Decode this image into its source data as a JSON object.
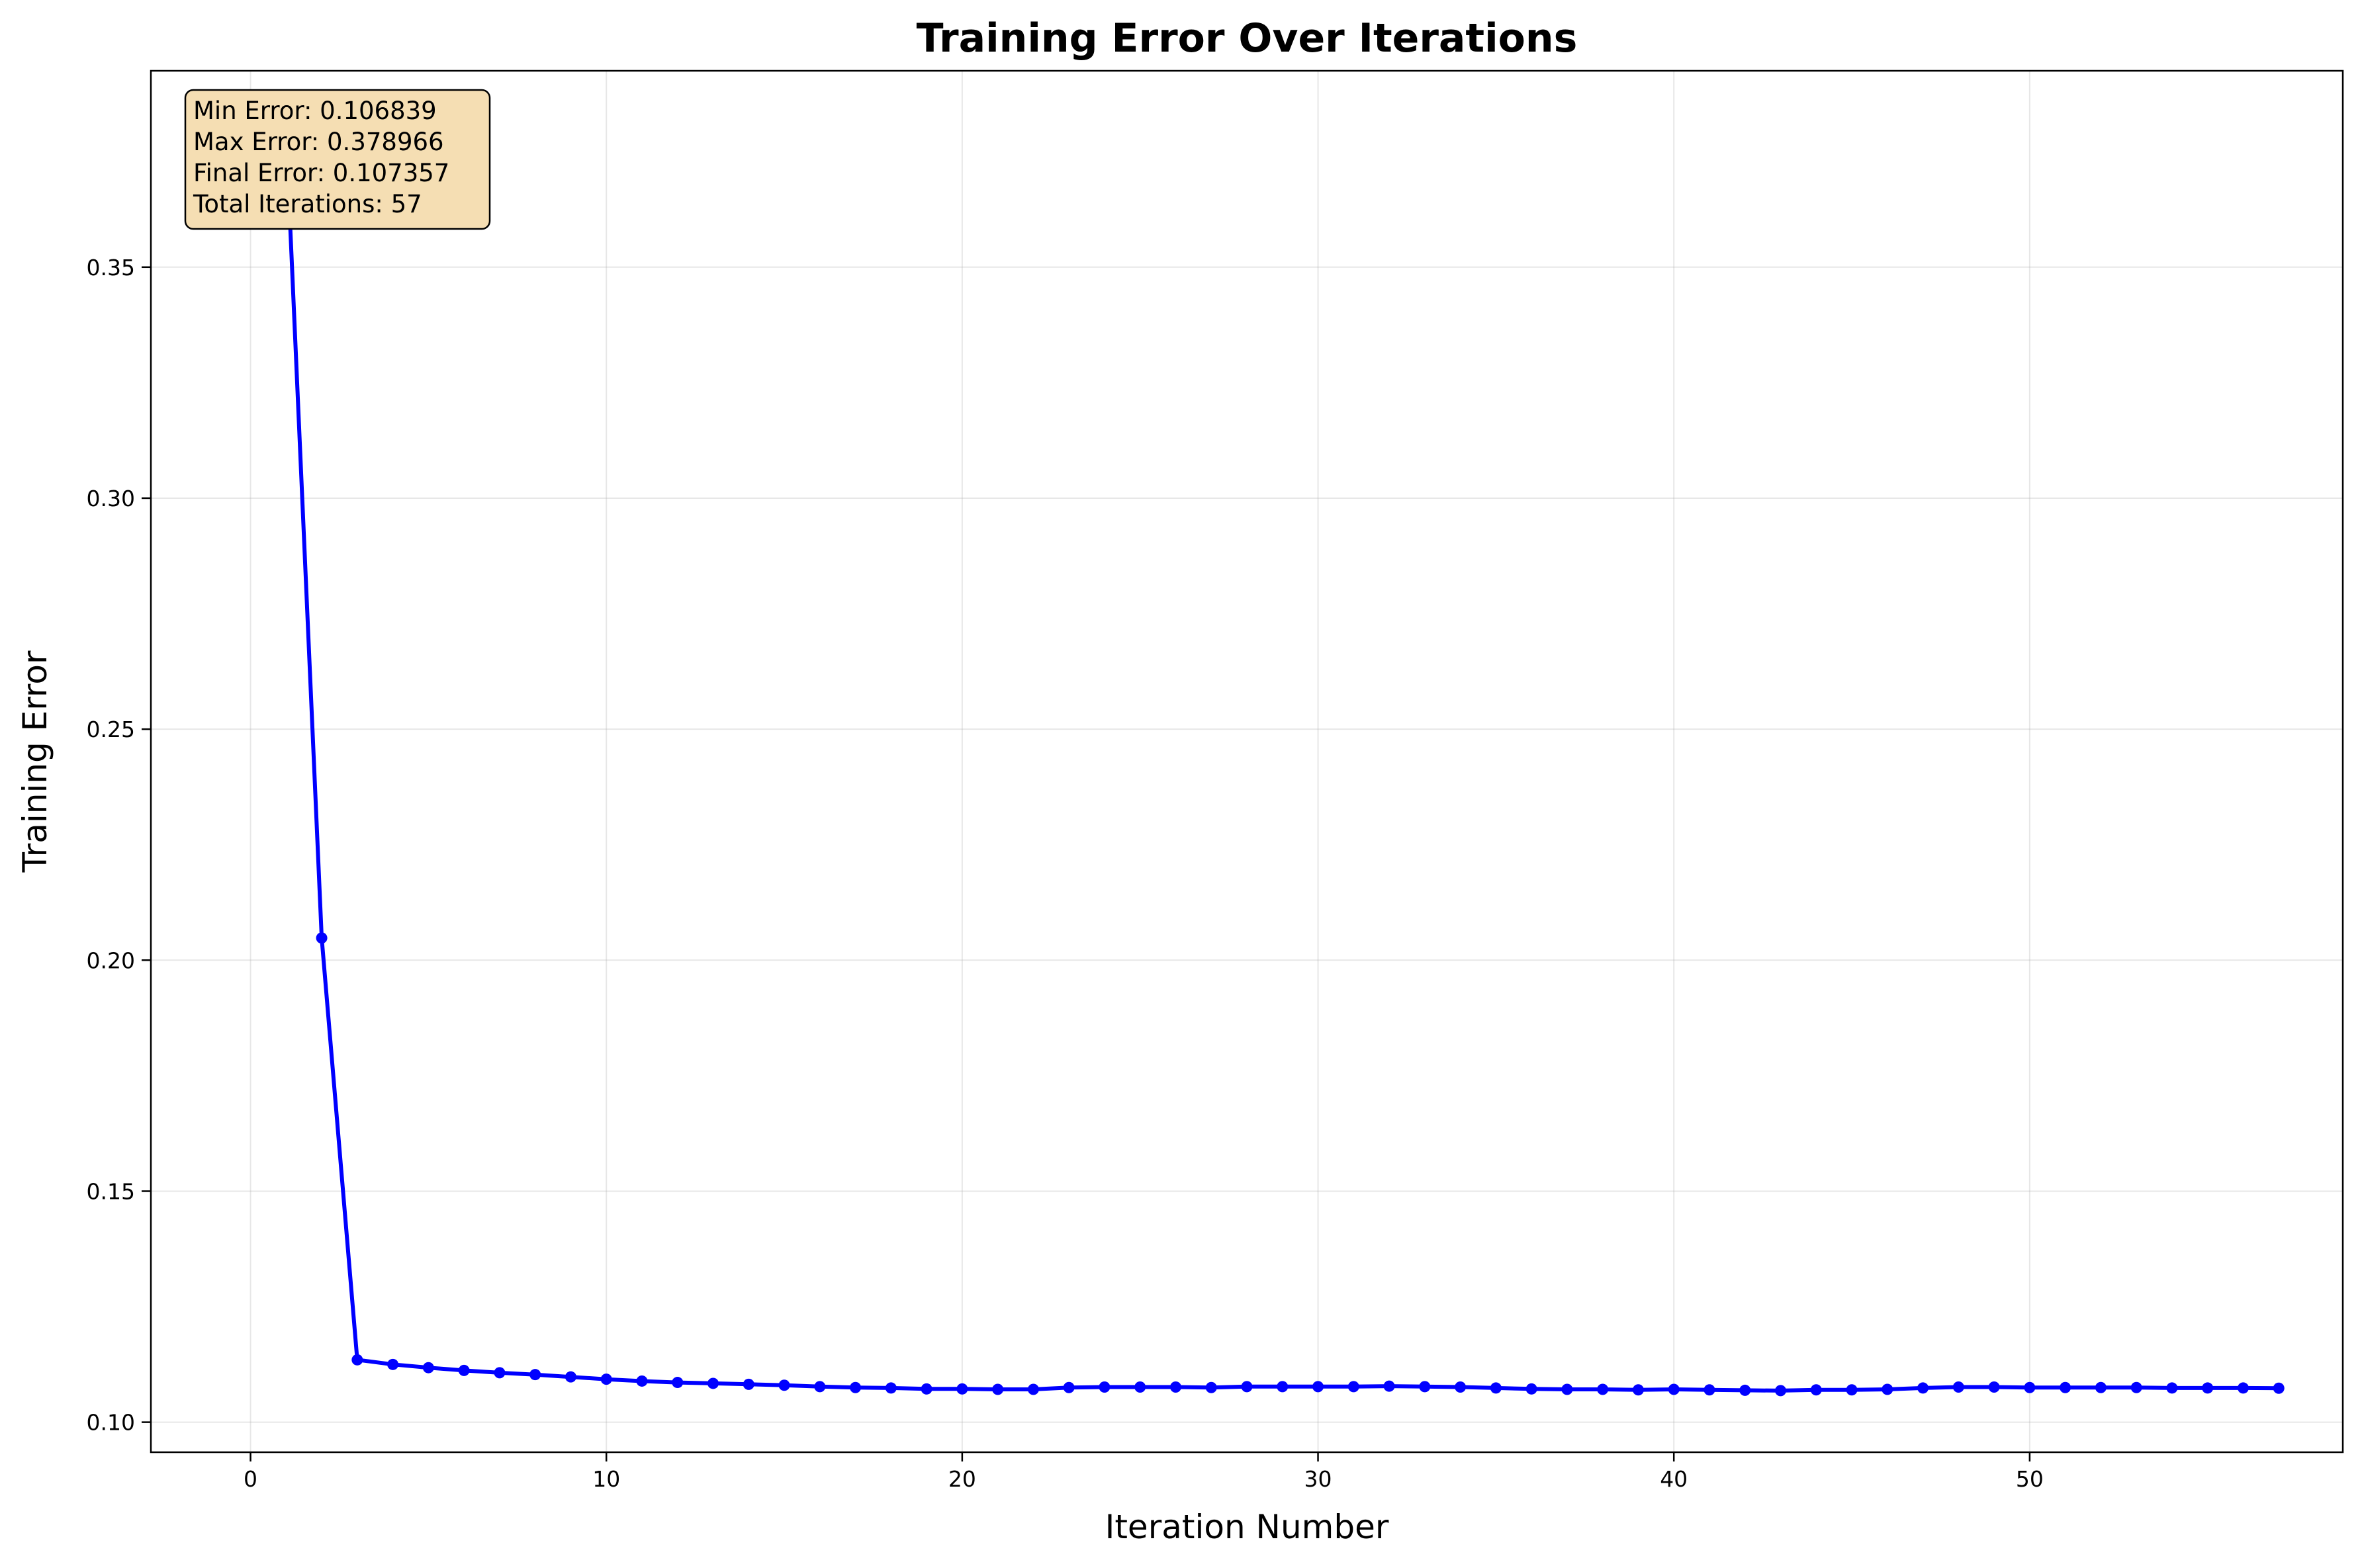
{
  "chart_data": {
    "type": "line",
    "title": "Training Error Over Iterations",
    "xlabel": "Iteration Number",
    "ylabel": "Training Error",
    "xlim": [
      -2.8,
      58.8
    ],
    "ylim": [
      0.0935,
      0.3925
    ],
    "xticks": [
      0,
      10,
      20,
      30,
      40,
      50
    ],
    "yticks": [
      0.1,
      0.15,
      0.2,
      0.25,
      0.3,
      0.35
    ],
    "xtick_labels": [
      "0",
      "10",
      "20",
      "30",
      "40",
      "50"
    ],
    "ytick_labels": [
      "0.10",
      "0.15",
      "0.20",
      "0.25",
      "0.30",
      "0.35"
    ],
    "grid": true,
    "line_color": "#0000ff",
    "annotation_bg": "#f5deb3",
    "stats": [
      "Min Error: 0.106839",
      "Max Error: 0.378966",
      "Final Error: 0.107357",
      "Total Iterations: 57"
    ],
    "series": [
      {
        "x": [
          1,
          2,
          3,
          4,
          5,
          6,
          7,
          8,
          9,
          10,
          11,
          12,
          13,
          14,
          15,
          16,
          17,
          18,
          19,
          20,
          21,
          22,
          23,
          24,
          25,
          26,
          27,
          28,
          29,
          30,
          31,
          32,
          33,
          34,
          35,
          36,
          37,
          38,
          39,
          40,
          41,
          42,
          43,
          44,
          45,
          46,
          47,
          48,
          49,
          50,
          51,
          52,
          53,
          54,
          55,
          56,
          57
        ],
        "values": [
          0.378966,
          0.2048,
          0.1135,
          0.1125,
          0.1118,
          0.1112,
          0.1107,
          0.1103,
          0.1098,
          0.1093,
          0.1089,
          0.1086,
          0.1084,
          0.1082,
          0.108,
          0.1077,
          0.1075,
          0.1074,
          0.1072,
          0.1072,
          0.1071,
          0.1071,
          0.1075,
          0.1076,
          0.1076,
          0.1076,
          0.1075,
          0.1077,
          0.1077,
          0.1077,
          0.1077,
          0.1078,
          0.1077,
          0.1076,
          0.1074,
          0.1072,
          0.1071,
          0.1071,
          0.107,
          0.1071,
          0.107,
          0.1069,
          0.106839,
          0.107,
          0.107,
          0.1071,
          0.1074,
          0.1076,
          0.1076,
          0.1075,
          0.1075,
          0.1075,
          0.1075,
          0.1074,
          0.1074,
          0.1074,
          0.107357
        ]
      }
    ]
  }
}
